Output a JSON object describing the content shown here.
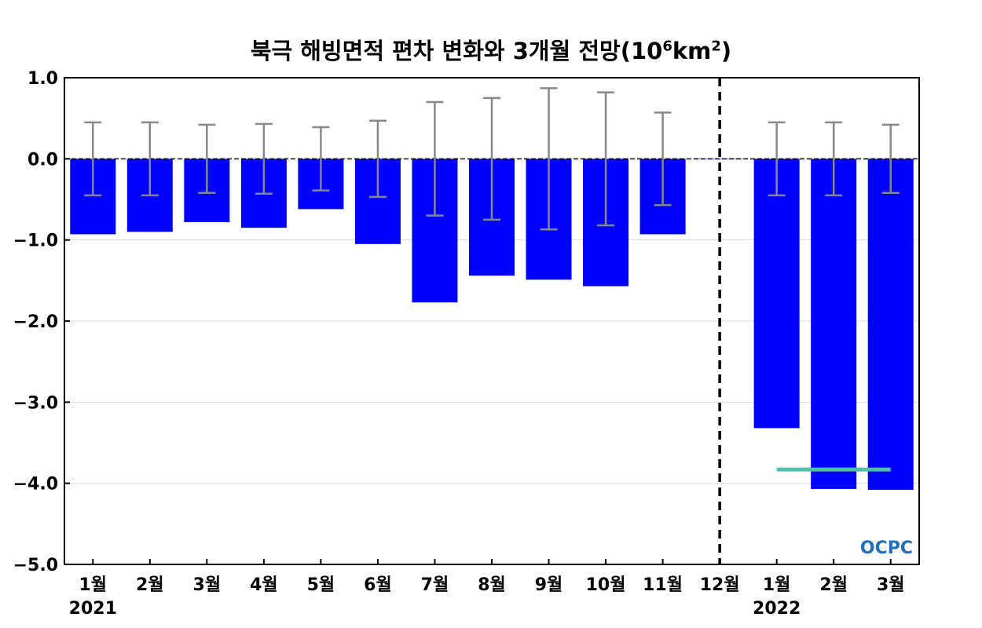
{
  "chart_data": {
    "type": "bar",
    "title_main": "북극 해빙면적 편차 변화와 3개월 전망(10",
    "title_sup1": "6",
    "title_mid": "km",
    "title_sup2": "2",
    "title_end": ")",
    "categories": [
      "1월",
      "2월",
      "3월",
      "4월",
      "5월",
      "6월",
      "7월",
      "8월",
      "9월",
      "10월",
      "11월",
      "12월",
      "1월",
      "2월",
      "3월"
    ],
    "values": [
      -0.93,
      -0.9,
      -0.78,
      -0.85,
      -0.62,
      -1.05,
      -1.77,
      -1.44,
      -1.49,
      -1.57,
      -0.93,
      0.0,
      -3.32,
      -4.07,
      -4.08
    ],
    "error_bars": [
      0.45,
      0.45,
      0.42,
      0.43,
      0.39,
      0.47,
      0.7,
      0.75,
      0.87,
      0.82,
      0.57,
      null,
      0.45,
      0.45,
      0.42
    ],
    "year_labels": [
      {
        "text": "2021",
        "category_index": 0
      },
      {
        "text": "2022",
        "category_index": 12
      }
    ],
    "forecast_divider_after_index": 11,
    "reference_line": {
      "value": -3.83,
      "from_index": 12,
      "to_index": 14,
      "color": "#4dbfaa"
    },
    "yticks": [
      "1.0",
      "0.0",
      "−1.0",
      "−2.0",
      "−3.0",
      "−4.0",
      "−5.0"
    ],
    "ytick_values": [
      1.0,
      0.0,
      -1.0,
      -2.0,
      -3.0,
      -4.0,
      -5.0
    ],
    "ylim": [
      -5.0,
      1.0
    ],
    "grid": true,
    "bar_color": "#0000ff",
    "error_bar_color": "#888888",
    "logo_text": "OCPC",
    "logo_color": "#1f6fbf"
  }
}
